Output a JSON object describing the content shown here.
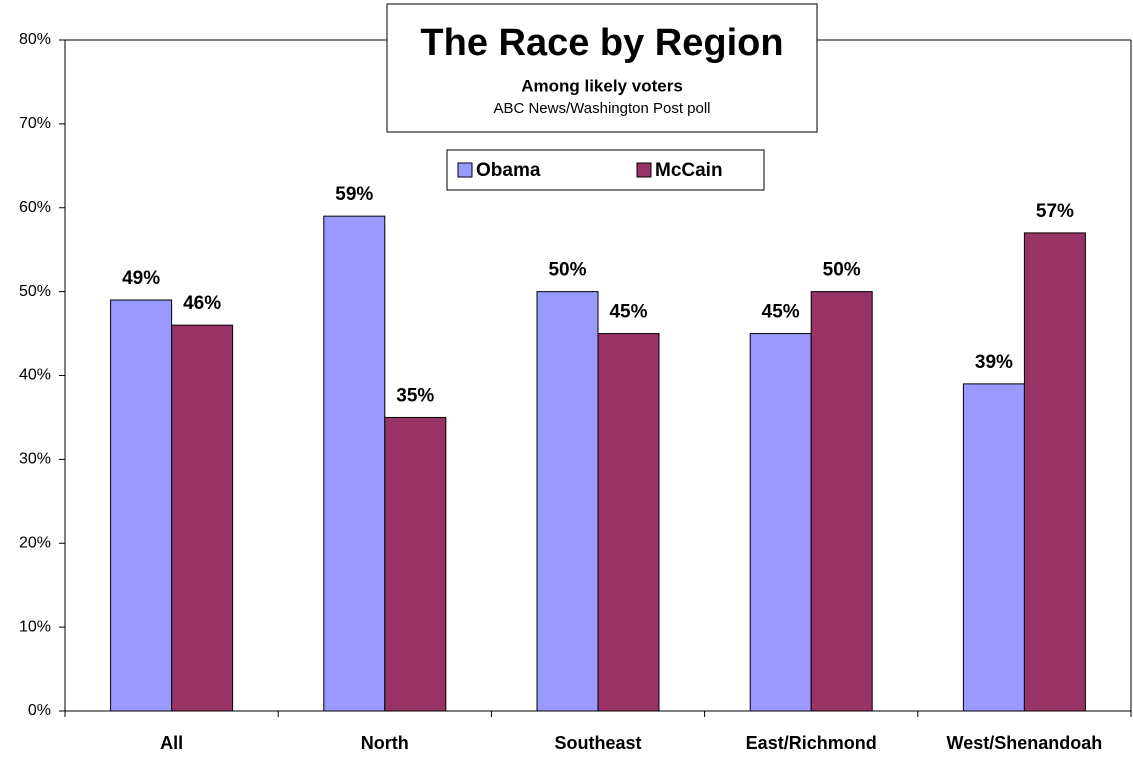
{
  "chart_data": {
    "type": "bar",
    "title": "The Race by Region",
    "subtitle": "Among likely voters",
    "source": "ABC News/Washington Post poll",
    "categories": [
      "All",
      "North",
      "Southeast",
      "East/Richmond",
      "West/Shenandoah"
    ],
    "series": [
      {
        "name": "Obama",
        "color": "#9999ff",
        "values": [
          49,
          59,
          50,
          45,
          39
        ],
        "value_labels": [
          "49%",
          "59%",
          "50%",
          "45%",
          "39%"
        ]
      },
      {
        "name": "McCain",
        "color": "#993366",
        "values": [
          46,
          35,
          45,
          50,
          57
        ],
        "value_labels": [
          "46%",
          "35%",
          "45%",
          "50%",
          "57%"
        ]
      }
    ],
    "ylim": [
      0,
      80
    ],
    "yticks": [
      {
        "value": 0,
        "label": "0%"
      },
      {
        "value": 10,
        "label": "10%"
      },
      {
        "value": 20,
        "label": "20%"
      },
      {
        "value": 30,
        "label": "30%"
      },
      {
        "value": 40,
        "label": "40%"
      },
      {
        "value": 50,
        "label": "50%"
      },
      {
        "value": 60,
        "label": "60%"
      },
      {
        "value": 70,
        "label": "70%"
      },
      {
        "value": 80,
        "label": "80%"
      }
    ]
  }
}
